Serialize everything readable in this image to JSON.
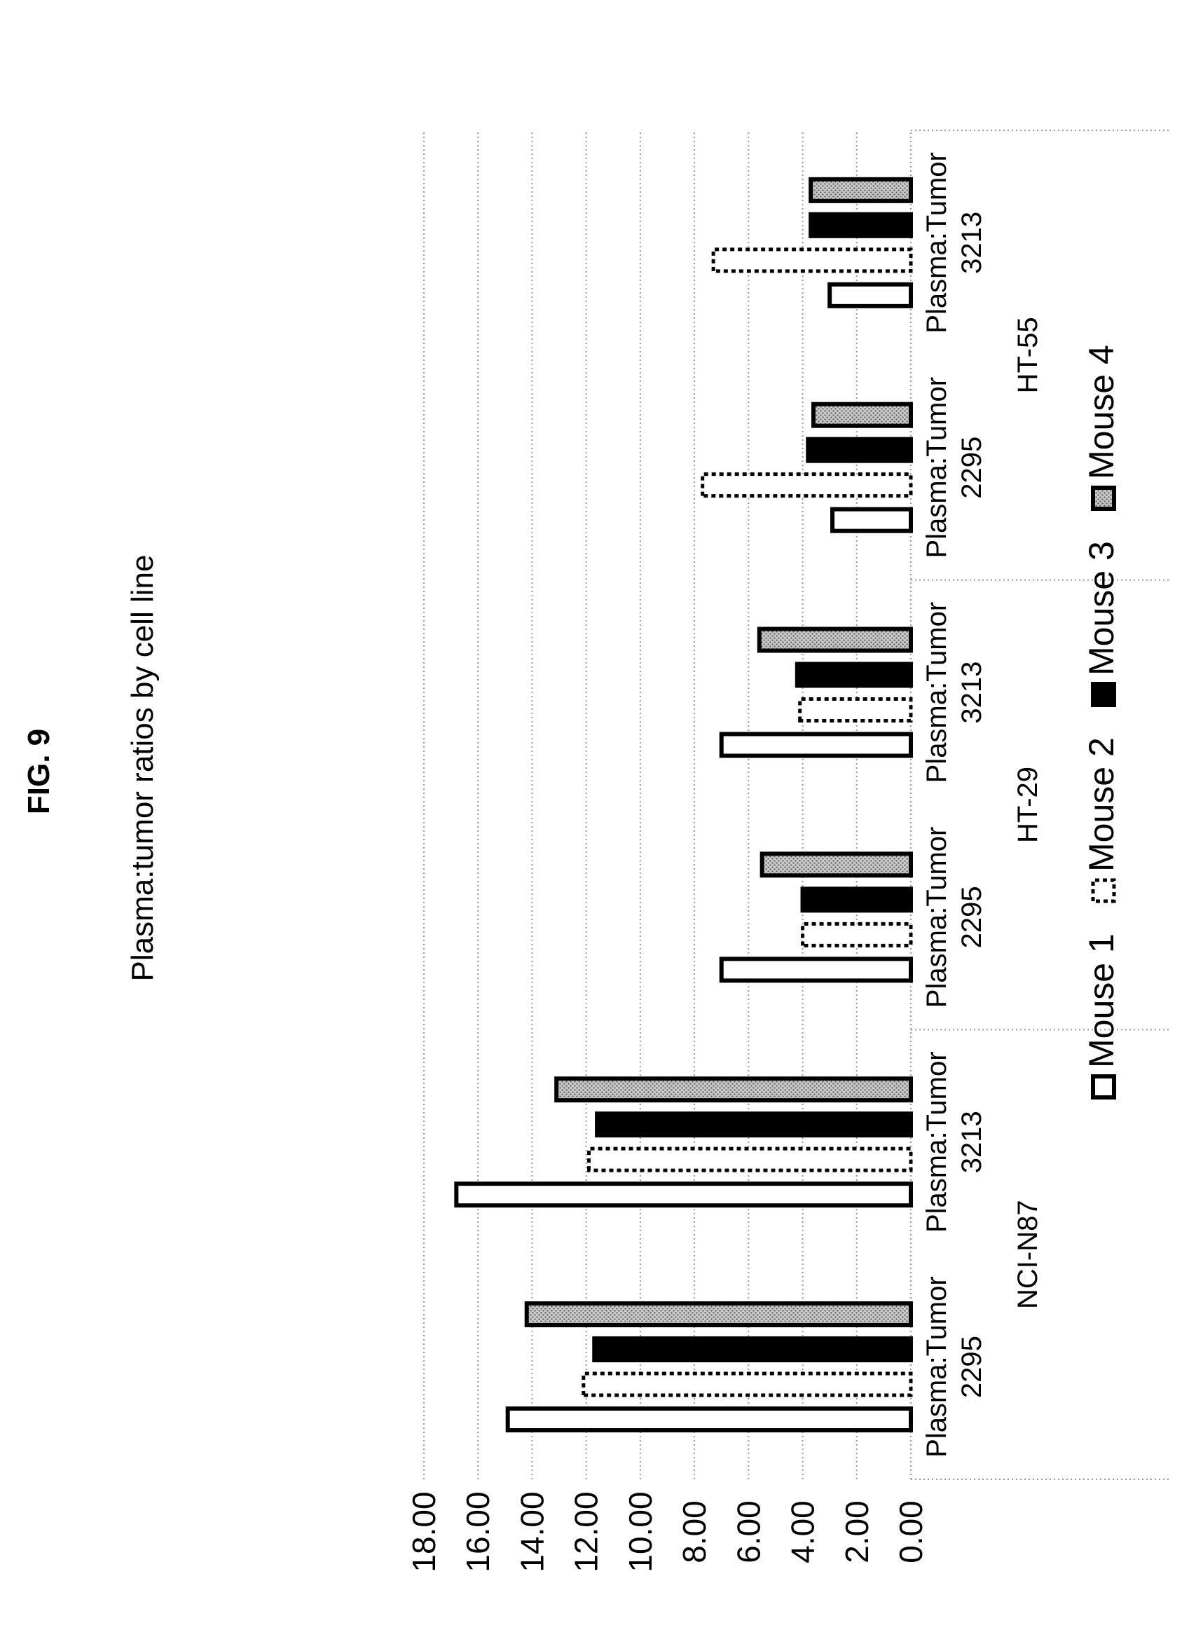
{
  "figure_label": "FIG. 9",
  "chart_data": {
    "type": "bar",
    "title": "Plasma:tumor ratios by cell line",
    "xlabel": "",
    "ylabel": "",
    "ylim": [
      0,
      18
    ],
    "y_ticks": [
      "0.00",
      "2.00",
      "4.00",
      "6.00",
      "8.00",
      "10.00",
      "12.00",
      "14.00",
      "16.00",
      "18.00"
    ],
    "grid": "horizontal dotted",
    "legend_position": "bottom",
    "groups": [
      {
        "label": "NCI-N87",
        "categories": [
          [
            "Plasma:Tumor",
            "2295"
          ],
          [
            "Plasma:Tumor",
            "3213"
          ]
        ]
      },
      {
        "label": "HT-29",
        "categories": [
          [
            "Plasma:Tumor",
            "2295"
          ],
          [
            "Plasma:Tumor",
            "3213"
          ]
        ]
      },
      {
        "label": "HT-55",
        "categories": [
          [
            "Plasma:Tumor",
            "2295"
          ],
          [
            "Plasma:Tumor",
            "3213"
          ]
        ]
      }
    ],
    "series": [
      {
        "name": "Mouse 1",
        "style": "white",
        "values": [
          14.9,
          16.8,
          7.0,
          7.0,
          2.9,
          3.0
        ]
      },
      {
        "name": "Mouse 2",
        "style": "dotted",
        "values": [
          12.1,
          11.9,
          4.0,
          4.1,
          7.7,
          7.3
        ]
      },
      {
        "name": "Mouse 3",
        "style": "black",
        "values": [
          11.7,
          11.6,
          4.0,
          4.2,
          3.8,
          3.7
        ]
      },
      {
        "name": "Mouse 4",
        "style": "stippled",
        "values": [
          14.2,
          13.1,
          5.5,
          5.6,
          3.6,
          3.7
        ]
      }
    ],
    "colors": {
      "fill_black": "#000000",
      "fill_white": "#ffffff",
      "stipple": "#8a8a8a",
      "gridline": "#9a9a9a"
    }
  }
}
